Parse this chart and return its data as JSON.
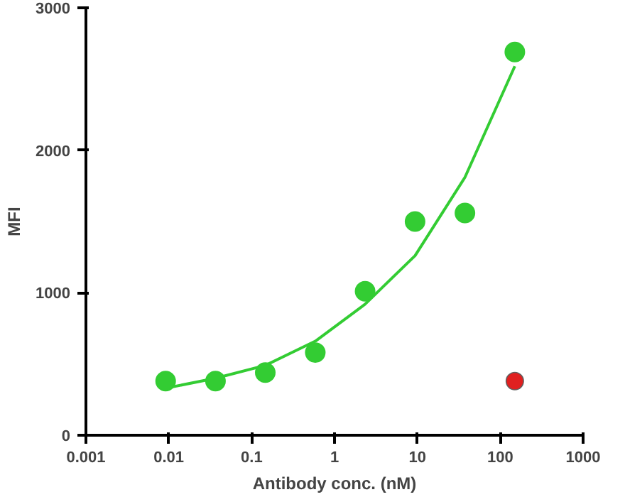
{
  "chart_data": {
    "type": "scatter",
    "xlabel": "Antibody conc. (nM)",
    "ylabel": "MFI",
    "log": "x",
    "xlim": [
      0.001,
      1000
    ],
    "xticks": [
      0.001,
      0.01,
      0.1,
      1,
      10,
      100,
      1000
    ],
    "ylim": [
      0,
      3000
    ],
    "yticks": [
      0,
      1000,
      2000,
      3000
    ],
    "grid": false,
    "marker": "circle",
    "series": [
      {
        "type": "line",
        "marker": "none",
        "color": "#33cc33",
        "x": [
          0.00916,
          0.0366,
          0.146,
          0.586,
          2.34,
          9.375,
          37.5,
          150
        ],
        "values": [
          330,
          400,
          490,
          660,
          920,
          1260,
          1810,
          2590
        ]
      },
      {
        "color": "#33cc33",
        "x": [
          0.00916,
          0.0366,
          0.146,
          0.586,
          2.34,
          9.375,
          37.5,
          150
        ],
        "values": [
          380,
          380,
          440,
          580,
          1010,
          1500,
          1560,
          2690
        ]
      },
      {
        "color": "#606060",
        "x": [
          150
        ],
        "values": [
          380
        ]
      },
      {
        "color": "#e02020",
        "x": [
          150
        ],
        "values": [
          380
        ]
      }
    ]
  }
}
